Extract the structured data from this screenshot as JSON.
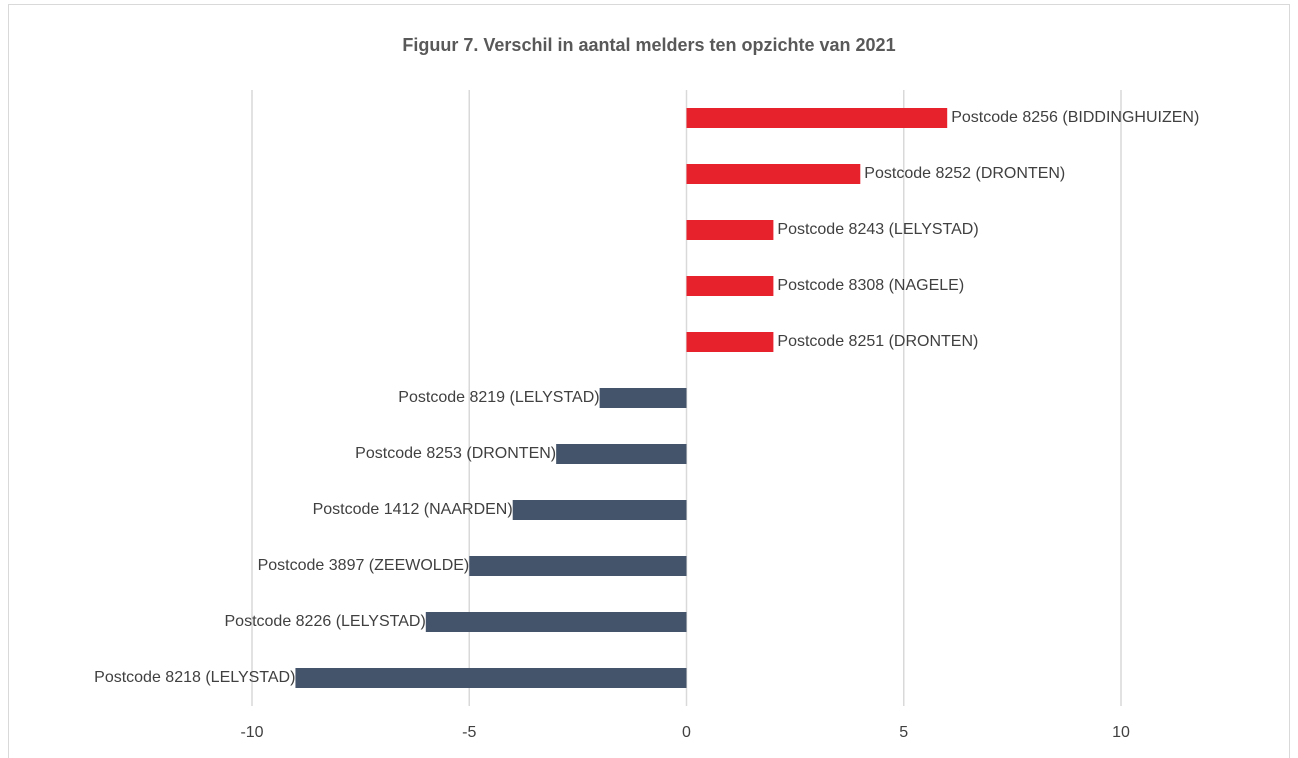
{
  "chart_data": {
    "type": "barh",
    "title": "Figuur 7. Verschil in aantal melders ten opzichte van 2021",
    "categories": [
      "Postcode 8256 (BIDDINGHUIZEN)",
      "Postcode 8252 (DRONTEN)",
      "Postcode 8243 (LELYSTAD)",
      "Postcode 8308 (NAGELE)",
      "Postcode 8251 (DRONTEN)",
      "Postcode 8219 (LELYSTAD)",
      "Postcode 8253 (DRONTEN)",
      "Postcode 1412 (NAARDEN)",
      "Postcode 3897 (ZEEWOLDE)",
      "Postcode 8226 (LELYSTAD)",
      "Postcode 8218 (LELYSTAD)"
    ],
    "values": [
      6,
      4,
      2,
      2,
      2,
      -2,
      -3,
      -4,
      -5,
      -6,
      -9
    ],
    "colors": [
      "#e8222d",
      "#e8222d",
      "#e8222d",
      "#e8222d",
      "#e8222d",
      "#44546a",
      "#44546a",
      "#44546a",
      "#44546a",
      "#44546a",
      "#44546a"
    ],
    "xlim": [
      -10,
      10
    ],
    "xticks": [
      -10,
      -5,
      0,
      5,
      10
    ],
    "grid": true
  }
}
